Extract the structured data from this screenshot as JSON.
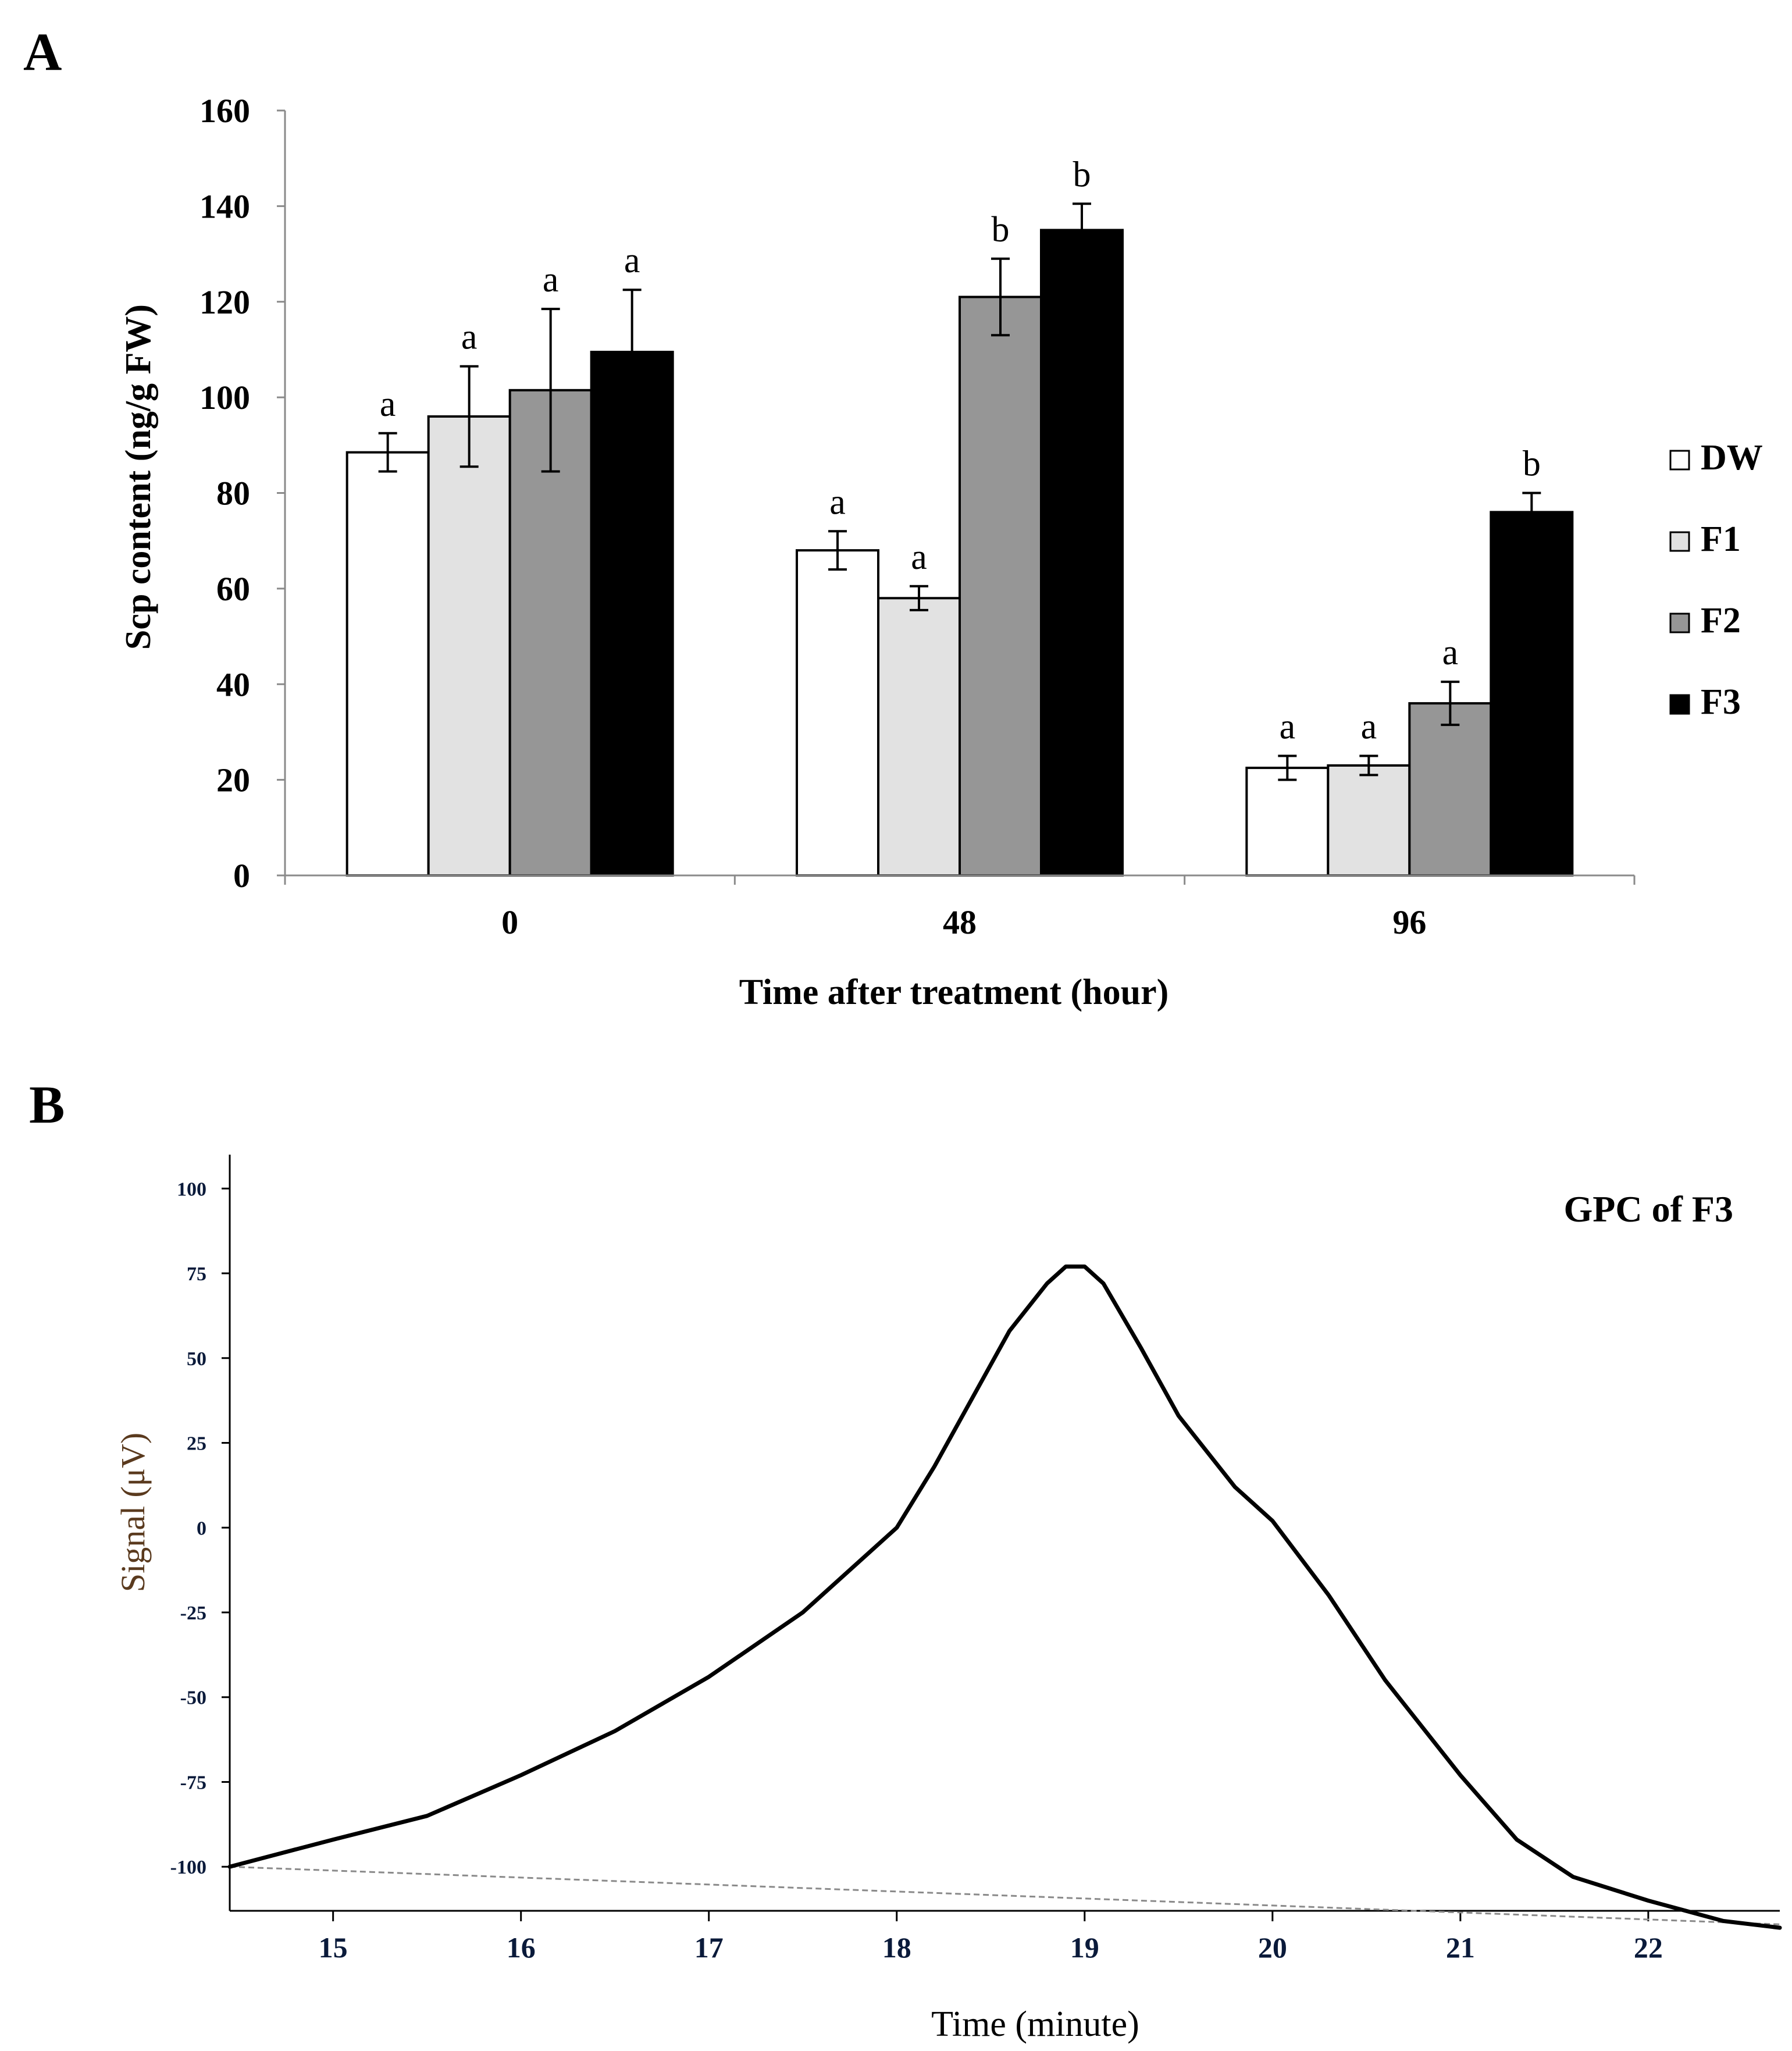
{
  "panels": {
    "a_label": "A",
    "b_label": "B"
  },
  "chart_data": [
    {
      "type": "bar",
      "panel": "A",
      "title": "",
      "xlabel": "Time after treatment (hour)",
      "ylabel": "Scp content (ng/g FW)",
      "ylim": [
        0,
        160
      ],
      "yticks": [
        0,
        20,
        40,
        60,
        80,
        100,
        120,
        140,
        160
      ],
      "categories": [
        "0",
        "48",
        "96"
      ],
      "legend_position": "right",
      "series": [
        {
          "name": "DW",
          "color": "#ffffff",
          "values": [
            88.5,
            68.0,
            22.5
          ],
          "errors": [
            4.0,
            4.0,
            2.5
          ],
          "sig": [
            "a",
            "a",
            "a"
          ]
        },
        {
          "name": "F1",
          "color": "#e2e2e2",
          "values": [
            96.0,
            58.0,
            23.0
          ],
          "errors": [
            10.5,
            2.5,
            2.0
          ],
          "sig": [
            "a",
            "a",
            "a"
          ]
        },
        {
          "name": "F2",
          "color": "#969696",
          "values": [
            101.5,
            121.0,
            36.0
          ],
          "errors": [
            17.0,
            8.0,
            4.5
          ],
          "sig": [
            "a",
            "b",
            "a"
          ]
        },
        {
          "name": "F3",
          "color": "#000000",
          "values": [
            109.5,
            135.0,
            76.0
          ],
          "errors": [
            13.0,
            5.5,
            4.0
          ],
          "sig": [
            "a",
            "b",
            "b"
          ]
        }
      ]
    },
    {
      "type": "line",
      "panel": "B",
      "title": "GPC of F3",
      "xlabel": "Time (minute)",
      "ylabel": "Signal (μV)",
      "xlim": [
        14.45,
        22.7
      ],
      "ylim": [
        -113,
        110
      ],
      "xticks": [
        15,
        16,
        17,
        18,
        19,
        20,
        21,
        22
      ],
      "yticks": [
        100,
        75,
        50,
        25,
        0,
        -25,
        -50,
        -75,
        -100
      ],
      "ytick_labels": [
        "100",
        "75",
        "50",
        "25",
        "0",
        "-25",
        "-50",
        "-75",
        "-100"
      ],
      "series": [
        {
          "name": "signal",
          "color": "#000000",
          "x": [
            14.45,
            15.0,
            15.5,
            16.0,
            16.5,
            17.0,
            17.5,
            18.0,
            18.2,
            18.4,
            18.6,
            18.8,
            18.9,
            19.0,
            19.1,
            19.3,
            19.5,
            19.8,
            20.0,
            20.3,
            20.6,
            21.0,
            21.3,
            21.6,
            22.0,
            22.4,
            22.7
          ],
          "y": [
            -100,
            -92,
            -85,
            -73,
            -60,
            -44,
            -25,
            0,
            18,
            38,
            58,
            72,
            77,
            77,
            72,
            53,
            33,
            12,
            2,
            -20,
            -45,
            -73,
            -92,
            -103,
            -110,
            -116,
            -118
          ]
        },
        {
          "name": "baseline",
          "color": "#8a8a8a",
          "style": "dashed",
          "x": [
            14.45,
            22.7
          ],
          "y": [
            -100,
            -117
          ]
        }
      ]
    }
  ]
}
